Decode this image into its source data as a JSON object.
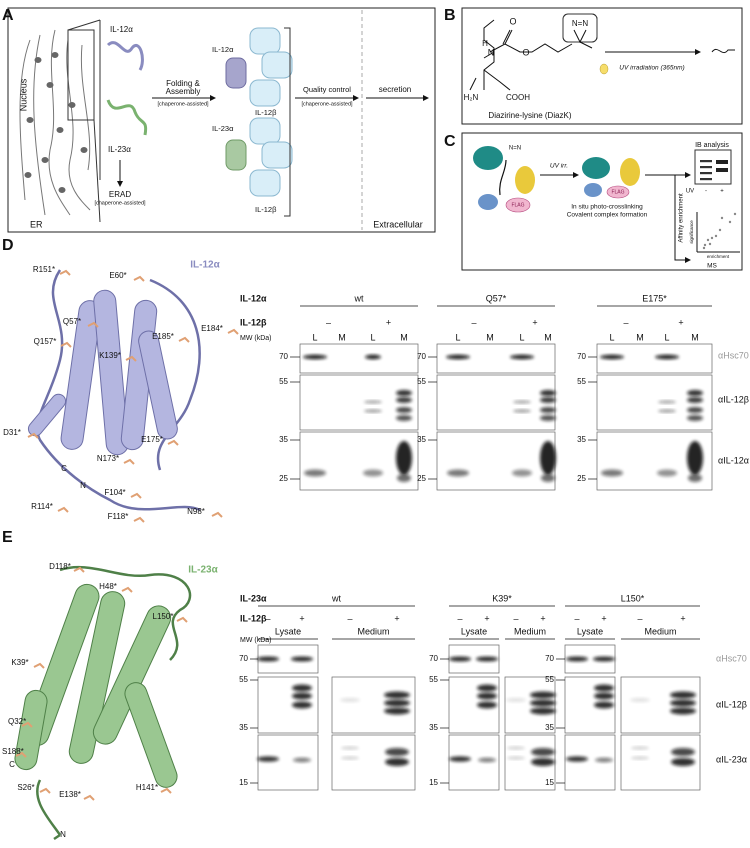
{
  "panel_a": {
    "label": "A",
    "nucleus": "Nucleus",
    "er": "ER",
    "il12a": "IL-12α",
    "il23a": "IL-23α",
    "folding": [
      "Folding &",
      "Assembly"
    ],
    "folding_note": "[chaperone-assisted]",
    "erad": "ERAD",
    "erad_note": "[chaperone-assisted]",
    "complex_1": [
      "IL-12α",
      "IL-12β"
    ],
    "complex_2": [
      "IL-23α",
      "IL-12β"
    ],
    "quality_control": "Quality control",
    "quality_control_note": "[chaperone-assisted]",
    "secretion": "secretion",
    "extracellular": "Extracellular"
  },
  "panel_b": {
    "label": "B",
    "atoms": [
      "O",
      "O",
      "H",
      "N",
      "N=N",
      "H₂N",
      "COOH"
    ],
    "compound": "Diazirine-lysine (DiazK)",
    "uv": "UV irradiation (365nm)"
  },
  "panel_c": {
    "label": "C",
    "diazirine": "N=N",
    "uv": "UV irr.",
    "tag": "FLAG",
    "crosslinking": [
      "In situ photo-crosslinking",
      "Covalent complex formation"
    ],
    "ib": "IB analysis",
    "uv_lane": "UV",
    "uv_signs": [
      "-",
      "+"
    ],
    "affinity": "Affinity enrichment",
    "y_axis": "significance",
    "x_axis": "enrichment",
    "ms": "MS"
  },
  "panel_d": {
    "label": "D",
    "title": "IL-12α",
    "residues": [
      "R151*",
      "E60*",
      "Q57*",
      "Q157*",
      "K139*",
      "E185*",
      "E184*",
      "D31*",
      "E175*",
      "N173*",
      "C",
      "N",
      "F104*",
      "R114*",
      "F118*",
      "N98*"
    ],
    "blot": {
      "row_1": "IL-12α",
      "row_2": "IL-12β",
      "mw_title": "MW (kDa)",
      "groups": [
        {
          "name": "wt",
          "signs": [
            "–",
            "+"
          ],
          "lanes": [
            "L",
            "M",
            "L",
            "M"
          ]
        },
        {
          "name": "Q57*",
          "signs": [
            "–",
            "+"
          ],
          "lanes": [
            "L",
            "M",
            "L",
            "M"
          ]
        },
        {
          "name": "E175*",
          "signs": [
            "–",
            "+"
          ],
          "lanes": [
            "L",
            "M",
            "L",
            "M"
          ]
        }
      ],
      "mw_markers": [
        70,
        55,
        35,
        25
      ],
      "antibodies": [
        "αHsc70",
        "αIL-12β",
        "αIL-12α"
      ]
    }
  },
  "panel_e": {
    "label": "E",
    "title": "IL-23α",
    "residues": [
      "D118*",
      "H48*",
      "L150*",
      "K39*",
      "Q32*",
      "S188*",
      "C",
      "H141*",
      "S26*",
      "E138*",
      "N"
    ],
    "blot": {
      "row_1": "IL-23α",
      "row_2": "IL-12β",
      "mw_title": "MW (kDa)",
      "groups": [
        {
          "name": "wt",
          "signs": [
            "–",
            "+",
            "–",
            "+"
          ],
          "fractions": [
            "Lysate",
            "Medium"
          ]
        },
        {
          "name": "K39*",
          "signs": [
            "–",
            "+",
            "–",
            "+"
          ],
          "fractions": [
            "Lysate",
            "Medium"
          ]
        },
        {
          "name": "L150*",
          "signs": [
            "–",
            "+",
            "–",
            "+"
          ],
          "fractions": [
            "Lysate",
            "Medium"
          ]
        }
      ],
      "mw_markers": [
        70,
        55,
        35,
        15
      ],
      "antibodies": [
        "αHsc70",
        "αIL-12β",
        "αIL-23α"
      ]
    }
  }
}
